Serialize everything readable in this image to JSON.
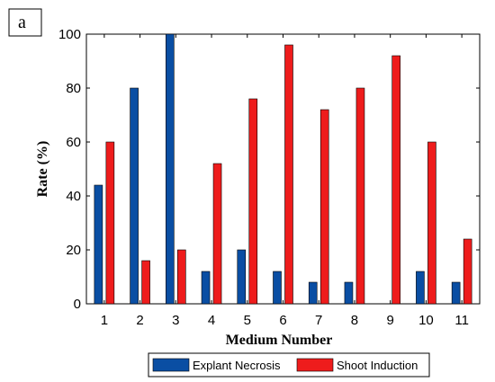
{
  "panel_label": "a",
  "chart_data": {
    "type": "bar",
    "categories": [
      "1",
      "2",
      "3",
      "4",
      "5",
      "6",
      "7",
      "8",
      "9",
      "10",
      "11"
    ],
    "series": [
      {
        "name": "Explant Necrosis",
        "values": [
          44,
          80,
          100,
          12,
          20,
          12,
          8,
          8,
          0,
          12,
          8
        ],
        "color": "#0a4ea3"
      },
      {
        "name": "Shoot Induction",
        "values": [
          60,
          16,
          20,
          52,
          76,
          96,
          72,
          80,
          92,
          60,
          24
        ],
        "color": "#ee1c1c"
      }
    ],
    "xlabel": "Medium Number",
    "ylabel": "Rate (%)",
    "ylim": [
      0,
      100
    ],
    "yticks": [
      0,
      20,
      40,
      60,
      80,
      100
    ],
    "grid": false,
    "legend_position": "bottom"
  }
}
